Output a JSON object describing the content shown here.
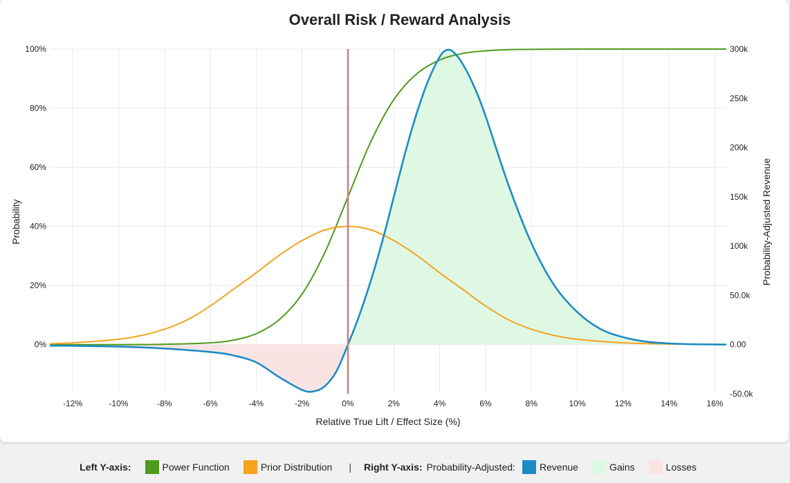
{
  "chart_data": {
    "type": "line",
    "title": "Overall Risk / Reward Analysis",
    "xlabel": "Relative True Lift / Effect Size (%)",
    "ylabel_left": "Probability",
    "ylabel_right": "Probability-Adjusted Revenue",
    "xlim": [
      -13,
      16.5
    ],
    "ylim_left": [
      -0.1667,
      1.0
    ],
    "ylim_right": [
      -50000,
      300000
    ],
    "x_ticks": [
      "-12%",
      "-10%",
      "-8%",
      "-6%",
      "-4%",
      "-2%",
      "0%",
      "2%",
      "4%",
      "6%",
      "8%",
      "10%",
      "12%",
      "14%",
      "16%"
    ],
    "y_left_ticks": [
      "100%",
      "80%",
      "60%",
      "40%",
      "20%",
      "0%"
    ],
    "y_right_ticks": [
      "300k",
      "250k",
      "200k",
      "150k",
      "100k",
      "50.0k",
      "0.00",
      "-50.0k"
    ],
    "grid": true,
    "series": [
      {
        "name": "Power Function",
        "axis": "left",
        "color": "#4e9a1c",
        "x": [
          -13,
          -10,
          -8,
          -6,
          -5,
          -4,
          -3,
          -2,
          -1,
          0,
          1,
          2,
          3,
          4,
          5,
          6,
          7,
          8,
          10,
          12,
          14,
          16.5
        ],
        "y": [
          0.0,
          0.0,
          0.001,
          0.006,
          0.015,
          0.037,
          0.084,
          0.171,
          0.313,
          0.5,
          0.687,
          0.829,
          0.916,
          0.963,
          0.985,
          0.994,
          0.998,
          0.999,
          1.0,
          1.0,
          1.0,
          1.0
        ]
      },
      {
        "name": "Prior Distribution",
        "axis": "left",
        "color": "#f5a21f",
        "x": [
          -13,
          -12,
          -10,
          -9,
          -8,
          -7,
          -6,
          -5,
          -4,
          -3,
          -2,
          -1,
          0,
          1,
          2,
          3,
          4,
          5,
          6,
          7,
          8,
          9,
          10,
          12,
          14,
          16.5
        ],
        "y": [
          0.003,
          0.006,
          0.018,
          0.031,
          0.052,
          0.084,
          0.131,
          0.187,
          0.243,
          0.302,
          0.352,
          0.388,
          0.4,
          0.388,
          0.352,
          0.302,
          0.243,
          0.187,
          0.131,
          0.084,
          0.052,
          0.031,
          0.018,
          0.006,
          0.002,
          0.0
        ]
      },
      {
        "name": "Revenue",
        "axis": "right",
        "color": "#1b8bc6",
        "x": [
          -13,
          -10,
          -8,
          -6,
          -5,
          -4,
          -3,
          -2,
          -1.5,
          -1,
          -0.5,
          0,
          0.5,
          1,
          1.5,
          2,
          2.5,
          3,
          3.5,
          4,
          4.3,
          4.6,
          5,
          5.5,
          6,
          7,
          8,
          9,
          10,
          11,
          12,
          13,
          14,
          15,
          16.5
        ],
        "y": [
          -1000,
          -2000,
          -4000,
          -7500,
          -11000,
          -18000,
          -33000,
          -46000,
          -47500,
          -42000,
          -27000,
          0,
          30000,
          65000,
          105000,
          150000,
          195000,
          235000,
          268000,
          292000,
          299000,
          297000,
          285000,
          262000,
          232000,
          162000,
          103000,
          60000,
          33000,
          16000,
          7500,
          3000,
          1200,
          400,
          0
        ]
      }
    ],
    "areas": [
      {
        "name": "Gains",
        "color": "#dff8e3",
        "x_range": [
          0,
          16.5
        ]
      },
      {
        "name": "Losses",
        "color": "#fae3e3",
        "x_range": [
          -13,
          0
        ]
      }
    ],
    "marker": {
      "x": 0,
      "color": "#c57f80"
    }
  },
  "legend": {
    "left_heading": "Left Y-axis:",
    "right_heading": "Right Y-axis:",
    "separator": "|",
    "prefix": "Probability-Adjusted:",
    "left_items": [
      {
        "label": "Power Function",
        "color": "#4e9a1c"
      },
      {
        "label": "Prior Distribution",
        "color": "#f5a21f"
      }
    ],
    "right_items": [
      {
        "label": "Revenue",
        "color": "#1b8bc6"
      },
      {
        "label": "Gains",
        "color": "#dff8e3"
      },
      {
        "label": "Losses",
        "color": "#fae3e3"
      }
    ]
  }
}
